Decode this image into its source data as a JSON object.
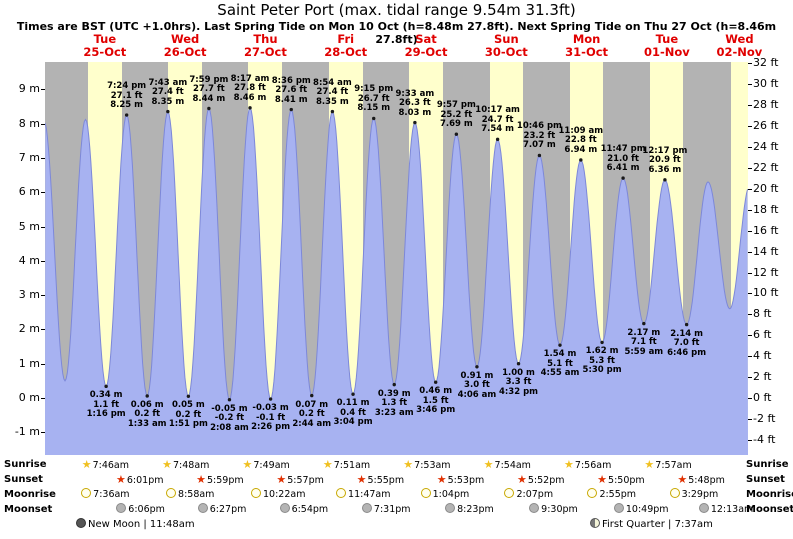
{
  "title": "Saint Peter Port (max. tidal range 9.54m 31.3ft)",
  "subtitle": "Times are BST (UTC +1.0hrs). Last Spring Tide on Mon 10 Oct (h=8.48m 27.8ft). Next Spring Tide on Thu 27 Oct (h=8.46m 27.8ft)",
  "days": [
    {
      "name": "Tue",
      "date": "25-Oct"
    },
    {
      "name": "Wed",
      "date": "26-Oct"
    },
    {
      "name": "Thu",
      "date": "27-Oct"
    },
    {
      "name": "Fri",
      "date": "28-Oct"
    },
    {
      "name": "Sat",
      "date": "29-Oct"
    },
    {
      "name": "Sun",
      "date": "30-Oct"
    },
    {
      "name": "Mon",
      "date": "31-Oct"
    },
    {
      "name": "Tue",
      "date": "01-Nov"
    },
    {
      "name": "Wed",
      "date": "02-Nov"
    }
  ],
  "axes": {
    "meters": [
      {
        "label": "9 m",
        "v": 9
      },
      {
        "label": "8 m",
        "v": 8
      },
      {
        "label": "7 m",
        "v": 7
      },
      {
        "label": "6 m",
        "v": 6
      },
      {
        "label": "5 m",
        "v": 5
      },
      {
        "label": "4 m",
        "v": 4
      },
      {
        "label": "3 m",
        "v": 3
      },
      {
        "label": "2 m",
        "v": 2
      },
      {
        "label": "1 m",
        "v": 1
      },
      {
        "label": "0 m",
        "v": 0
      },
      {
        "label": "-1 m",
        "v": -1
      }
    ],
    "feet": [
      {
        "label": "32 ft",
        "v": 32
      },
      {
        "label": "30 ft",
        "v": 30
      },
      {
        "label": "28 ft",
        "v": 28
      },
      {
        "label": "26 ft",
        "v": 26
      },
      {
        "label": "24 ft",
        "v": 24
      },
      {
        "label": "22 ft",
        "v": 22
      },
      {
        "label": "20 ft",
        "v": 20
      },
      {
        "label": "18 ft",
        "v": 18
      },
      {
        "label": "16 ft",
        "v": 16
      },
      {
        "label": "14 ft",
        "v": 14
      },
      {
        "label": "12 ft",
        "v": 12
      },
      {
        "label": "10 ft",
        "v": 10
      },
      {
        "label": "8 ft",
        "v": 8
      },
      {
        "label": "6 ft",
        "v": 6
      },
      {
        "label": "4 ft",
        "v": 4
      },
      {
        "label": "2 ft",
        "v": 2
      },
      {
        "label": "0 ft",
        "v": 0
      },
      {
        "label": "-2 ft",
        "v": -2
      },
      {
        "label": "-4 ft",
        "v": -4
      }
    ]
  },
  "colors": {
    "daylight": "#ffffcc",
    "night": "#b3b3b3",
    "tide_fill": "#a7b2f1",
    "tide_edge": "#7d88d8",
    "header_red": "#e00000",
    "sunrise_star": "#f0c020",
    "sunset_star": "#e03000"
  },
  "chart_data": {
    "type": "area",
    "title": "Saint Peter Port tide height over time",
    "ylabel_left": "meters",
    "ylabel_right": "feet",
    "ylim_m": [
      -1.66,
      9.8
    ],
    "t_unit": "hours from chart left edge",
    "tide_extremes": [
      {
        "t": -0.25,
        "m": 8.06,
        "kind": "high"
      },
      {
        "t": 5.97,
        "m": 0.5,
        "kind": "low"
      },
      {
        "t": 12.1,
        "m": 8.12,
        "kind": "high"
      },
      {
        "t": 18.27,
        "m": 0.34,
        "kind": "low",
        "lines": [
          "0.34 m",
          "1.1 ft",
          "1:16 pm"
        ]
      },
      {
        "t": 24.4,
        "m": 8.25,
        "kind": "high",
        "lines": [
          "7:24 pm",
          "27.1 ft",
          "8.25 m"
        ]
      },
      {
        "t": 30.55,
        "m": 0.06,
        "kind": "low",
        "lines": [
          "0.06 m",
          "0.2 ft",
          "1:33 am"
        ]
      },
      {
        "t": 36.72,
        "m": 8.35,
        "kind": "high",
        "lines": [
          "7:43 am",
          "27.4 ft",
          "8.35 m"
        ]
      },
      {
        "t": 42.85,
        "m": 0.05,
        "kind": "low",
        "lines": [
          "0.05 m",
          "0.2 ft",
          "1:51 pm"
        ]
      },
      {
        "t": 48.98,
        "m": 8.44,
        "kind": "high",
        "lines": [
          "7:59 pm",
          "27.7 ft",
          "8.44 m"
        ]
      },
      {
        "t": 55.13,
        "m": -0.05,
        "kind": "low",
        "lines": [
          "-0.05 m",
          "-0.2 ft",
          "2:08 am"
        ]
      },
      {
        "t": 61.28,
        "m": 8.46,
        "kind": "high",
        "lines": [
          "8:17 am",
          "27.8 ft",
          "8.46 m"
        ]
      },
      {
        "t": 67.43,
        "m": -0.03,
        "kind": "low",
        "lines": [
          "-0.03 m",
          "-0.1 ft",
          "2:26 pm"
        ]
      },
      {
        "t": 73.6,
        "m": 8.41,
        "kind": "high",
        "lines": [
          "8:36 pm",
          "27.6 ft",
          "8.41 m"
        ]
      },
      {
        "t": 79.73,
        "m": 0.07,
        "kind": "low",
        "lines": [
          "0.07 m",
          "0.2 ft",
          "2:44 am"
        ]
      },
      {
        "t": 85.9,
        "m": 8.35,
        "kind": "high",
        "lines": [
          "8:54 am",
          "27.4 ft",
          "8.35 m"
        ]
      },
      {
        "t": 92.07,
        "m": 0.11,
        "kind": "low",
        "lines": [
          "0.11 m",
          "0.4 ft",
          "3:04 pm"
        ]
      },
      {
        "t": 98.25,
        "m": 8.15,
        "kind": "high",
        "lines": [
          "9:15 pm",
          "26.7 ft",
          "8.15 m"
        ]
      },
      {
        "t": 104.38,
        "m": 0.39,
        "kind": "low",
        "lines": [
          "0.39 m",
          "1.3 ft",
          "3:23 am"
        ]
      },
      {
        "t": 110.55,
        "m": 8.03,
        "kind": "high",
        "lines": [
          "9:33 am",
          "26.3 ft",
          "8.03 m"
        ]
      },
      {
        "t": 116.77,
        "m": 0.46,
        "kind": "low",
        "lines": [
          "0.46 m",
          "1.5 ft",
          "3:46 pm"
        ]
      },
      {
        "t": 122.95,
        "m": 7.69,
        "kind": "high",
        "lines": [
          "9:57 pm",
          "25.2 ft",
          "7.69 m"
        ]
      },
      {
        "t": 129.1,
        "m": 0.91,
        "kind": "low",
        "lines": [
          "0.91 m",
          "3.0 ft",
          "4:06 am"
        ]
      },
      {
        "t": 135.28,
        "m": 7.54,
        "kind": "high",
        "lines": [
          "10:17 am",
          "24.7 ft",
          "7.54 m"
        ]
      },
      {
        "t": 141.53,
        "m": 1.0,
        "kind": "low",
        "lines": [
          "1.00 m",
          "3.3 ft",
          "4:32 pm"
        ]
      },
      {
        "t": 147.77,
        "m": 7.07,
        "kind": "high",
        "lines": [
          "10:46 pm",
          "23.2 ft",
          "7.07 m"
        ]
      },
      {
        "t": 153.92,
        "m": 1.54,
        "kind": "low",
        "lines": [
          "1.54 m",
          "5.1 ft",
          "4:55 am"
        ]
      },
      {
        "t": 160.15,
        "m": 6.94,
        "kind": "high",
        "lines": [
          "11:09 am",
          "22.8 ft",
          "6.94 m"
        ]
      },
      {
        "t": 166.5,
        "m": 1.62,
        "kind": "low",
        "lines": [
          "1.62 m",
          "5.3 ft",
          "5:30 pm"
        ]
      },
      {
        "t": 172.78,
        "m": 6.41,
        "kind": "high",
        "lines": [
          "11:47 pm",
          "21.0 ft",
          "6.41 m"
        ]
      },
      {
        "t": 178.98,
        "m": 2.17,
        "kind": "low",
        "lines": [
          "2.17 m",
          "7.1 ft",
          "5:59 am"
        ]
      },
      {
        "t": 185.28,
        "m": 6.36,
        "kind": "high",
        "lines": [
          "12:17 pm",
          "20.9 ft",
          "6.36 m"
        ]
      },
      {
        "t": 191.77,
        "m": 2.14,
        "kind": "low",
        "lines": [
          "2.14 m",
          "7.0 ft",
          "6:46 pm"
        ]
      },
      {
        "t": 198.17,
        "m": 6.3,
        "kind": "high"
      },
      {
        "t": 204.67,
        "m": 2.6,
        "kind": "low"
      },
      {
        "t": 210.67,
        "m": 6.2,
        "kind": "high"
      }
    ],
    "daylight": [
      [
        12.77,
        23.02
      ],
      [
        36.8,
        46.97
      ],
      [
        60.82,
        70.95
      ],
      [
        84.85,
        94.92
      ],
      [
        108.88,
        118.88
      ],
      [
        132.9,
        142.87
      ],
      [
        156.93,
        166.83
      ],
      [
        180.95,
        190.8
      ],
      [
        204.98,
        212.0
      ]
    ]
  },
  "astro": {
    "row_labels": [
      "Sunrise",
      "Sunset",
      "Moonrise",
      "Moonset"
    ],
    "sunrise": [
      {
        "time": "7:46am",
        "t": 12.77
      },
      {
        "time": "7:48am",
        "t": 36.8
      },
      {
        "time": "7:49am",
        "t": 60.82
      },
      {
        "time": "7:51am",
        "t": 84.85
      },
      {
        "time": "7:53am",
        "t": 108.88
      },
      {
        "time": "7:54am",
        "t": 132.9
      },
      {
        "time": "7:56am",
        "t": 156.93
      },
      {
        "time": "7:57am",
        "t": 180.95
      }
    ],
    "sunset": [
      {
        "time": "6:01pm",
        "t": 23.02
      },
      {
        "time": "5:59pm",
        "t": 46.97
      },
      {
        "time": "5:57pm",
        "t": 70.95
      },
      {
        "time": "5:55pm",
        "t": 94.92
      },
      {
        "time": "5:53pm",
        "t": 118.88
      },
      {
        "time": "5:52pm",
        "t": 142.87
      },
      {
        "time": "5:50pm",
        "t": 166.83
      },
      {
        "time": "5:48pm",
        "t": 190.8
      }
    ],
    "moonrise": [
      {
        "time": "7:36am",
        "t": 12.6
      },
      {
        "time": "8:58am",
        "t": 37.97
      },
      {
        "time": "10:22am",
        "t": 63.37
      },
      {
        "time": "11:47am",
        "t": 88.78
      },
      {
        "time": "1:04pm",
        "t": 114.07
      },
      {
        "time": "2:07pm",
        "t": 139.12
      },
      {
        "time": "2:55pm",
        "t": 163.92
      },
      {
        "time": "3:29pm",
        "t": 188.48
      }
    ],
    "moonset": [
      {
        "time": "6:06pm",
        "t": 23.1
      },
      {
        "time": "6:27pm",
        "t": 47.45
      },
      {
        "time": "6:54pm",
        "t": 71.9
      },
      {
        "time": "7:31pm",
        "t": 96.52
      },
      {
        "time": "8:23pm",
        "t": 121.38
      },
      {
        "time": "9:30pm",
        "t": 146.5
      },
      {
        "time": "10:49pm",
        "t": 171.82
      },
      {
        "time": "12:13am",
        "t": 197.22
      }
    ]
  },
  "footer": {
    "new_moon": "New Moon | 11:48am",
    "first_quarter": "First Quarter | 7:37am"
  }
}
